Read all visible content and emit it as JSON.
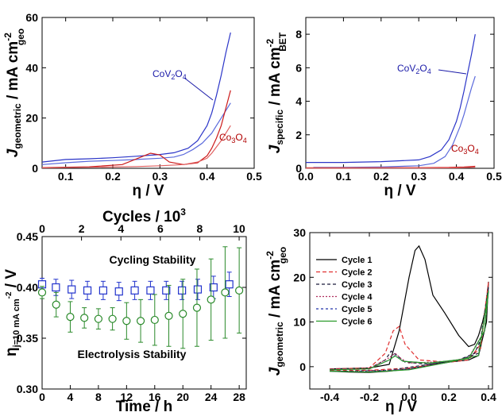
{
  "chart_data": [
    {
      "type": "line",
      "id": "A",
      "xlim": [
        0.05,
        0.5
      ],
      "ylim": [
        0,
        60
      ],
      "xticks": [
        0.1,
        0.2,
        0.3,
        0.4,
        0.5
      ],
      "xtick_labels": [
        "0.1",
        "0.2",
        "0.3",
        "0.4",
        "0.5"
      ],
      "yticks": [
        0,
        20,
        40,
        60
      ],
      "ytick_labels": [
        "0",
        "20",
        "40",
        "60"
      ],
      "xlabel": "η / V",
      "ylabel_main": "J",
      "ylabel_sub": "geometric",
      "ylabel_unit": " / mA cm",
      "ylabel_sup": "-2",
      "ylabel_sub2": "geo",
      "annotations": [
        {
          "text_main": "CoV",
          "sub1": "2",
          "mid": "O",
          "sub2": "4",
          "color": "#1a1aa8"
        },
        {
          "text_main": "Co",
          "sub1": "3",
          "mid": "O",
          "sub2": "4",
          "color": "#b00000"
        }
      ],
      "series": [
        {
          "color": "#2b35c8",
          "x": [
            0.05,
            0.1,
            0.15,
            0.2,
            0.25,
            0.3,
            0.33,
            0.36,
            0.38,
            0.4,
            0.41,
            0.42,
            0.43,
            0.44,
            0.45
          ],
          "y": [
            2.5,
            3.5,
            3.8,
            4.2,
            4.8,
            5.5,
            6.2,
            8,
            11,
            17,
            22,
            29,
            37,
            46,
            54
          ]
        },
        {
          "color": "#5b6adc",
          "x": [
            0.05,
            0.1,
            0.15,
            0.2,
            0.25,
            0.3,
            0.33,
            0.35,
            0.37,
            0.39,
            0.41,
            0.42,
            0.43,
            0.44,
            0.45
          ],
          "y": [
            1.5,
            2.2,
            2.8,
            3.1,
            3.5,
            4,
            4.5,
            5.5,
            7.5,
            10,
            14,
            17,
            20,
            23,
            26
          ]
        },
        {
          "color": "#cc1a1a",
          "x": [
            0.05,
            0.15,
            0.22,
            0.26,
            0.28,
            0.3,
            0.32,
            0.35,
            0.38,
            0.4,
            0.41,
            0.42,
            0.43,
            0.44,
            0.45
          ],
          "y": [
            0.3,
            0.6,
            1.5,
            4.5,
            6,
            5.3,
            2.5,
            1.5,
            2.2,
            5,
            8,
            12,
            17,
            24,
            31
          ]
        },
        {
          "color": "#e06060",
          "x": [
            0.05,
            0.15,
            0.25,
            0.3,
            0.35,
            0.38,
            0.4,
            0.41,
            0.42,
            0.43,
            0.44,
            0.45
          ],
          "y": [
            0.2,
            0.4,
            0.7,
            1,
            1.5,
            2.5,
            4,
            6,
            8.5,
            11,
            14,
            17
          ]
        }
      ]
    },
    {
      "type": "line",
      "id": "B",
      "xlim": [
        0,
        0.5
      ],
      "ylim": [
        0,
        9
      ],
      "xticks": [
        0,
        0.1,
        0.2,
        0.3,
        0.4,
        0.5
      ],
      "xtick_labels": [
        "0.0",
        "0.1",
        "0.2",
        "0.3",
        "0.4",
        "0.5"
      ],
      "yticks": [
        0,
        2,
        4,
        6,
        8
      ],
      "ytick_labels": [
        "0",
        "2",
        "4",
        "6",
        "8"
      ],
      "xlabel": "η / V",
      "ylabel_main": "J",
      "ylabel_sub": "specific",
      "ylabel_unit": " / mA cm",
      "ylabel_sup": "-2",
      "ylabel_sub2": "BET",
      "annotations": [
        {
          "text_main": "CoV",
          "sub1": "2",
          "mid": "O",
          "sub2": "4",
          "color": "#1a1aa8"
        },
        {
          "text_main": "Co",
          "sub1": "3",
          "mid": "O",
          "sub2": "4",
          "color": "#b00000"
        }
      ],
      "series": [
        {
          "color": "#2b35c8",
          "x": [
            0,
            0.1,
            0.2,
            0.3,
            0.33,
            0.36,
            0.38,
            0.4,
            0.41,
            0.42,
            0.43,
            0.44,
            0.45
          ],
          "y": [
            0.35,
            0.35,
            0.4,
            0.5,
            0.7,
            1.1,
            1.7,
            2.8,
            3.6,
            4.6,
            5.7,
            6.8,
            8
          ]
        },
        {
          "color": "#5b6adc",
          "x": [
            0.02,
            0.1,
            0.2,
            0.3,
            0.34,
            0.37,
            0.39,
            0.41,
            0.42,
            0.43,
            0.44,
            0.45
          ],
          "y": [
            0.05,
            0.05,
            0.08,
            0.15,
            0.3,
            0.7,
            1.4,
            2.5,
            3.2,
            4,
            4.8,
            5.5
          ]
        },
        {
          "color": "#cc1a1a",
          "x": [
            0,
            0.1,
            0.2,
            0.3,
            0.38,
            0.42,
            0.45
          ],
          "y": [
            0.03,
            0.03,
            0.04,
            0.04,
            0.05,
            0.08,
            0.12
          ]
        },
        {
          "color": "#e06060",
          "x": [
            0,
            0.1,
            0.2,
            0.3,
            0.4,
            0.45
          ],
          "y": [
            0.01,
            0.01,
            0.02,
            0.02,
            0.03,
            0.06
          ]
        }
      ]
    },
    {
      "type": "scatter",
      "id": "C",
      "xlim": [
        0,
        29
      ],
      "ylim": [
        0.3,
        0.45
      ],
      "xticks": [
        0,
        4,
        8,
        12,
        16,
        20,
        24,
        28
      ],
      "xtick_labels": [
        "0",
        "4",
        "8",
        "12",
        "16",
        "20",
        "24",
        "28"
      ],
      "x2lim": [
        0,
        10.36
      ],
      "x2ticks": [
        0,
        2,
        4,
        6,
        8,
        10
      ],
      "x2tick_labels": [
        "0",
        "2",
        "4",
        "6",
        "8",
        "10"
      ],
      "yticks": [
        0.3,
        0.35,
        0.4,
        0.45
      ],
      "ytick_labels": [
        "0.30",
        "0.35",
        "0.40",
        "0.45"
      ],
      "xlabel": "Time / h",
      "x2label": "Cycles / 10",
      "x2label_sup": "3",
      "ylabel_main": "η",
      "ylabel_sub": "j=10 mA cm",
      "ylabel_sup": "-2",
      "ylabel_unit": " / V",
      "labels": [
        "Cycling Stability",
        "Electrolysis Stability"
      ],
      "series": [
        {
          "marker": "square",
          "color": "#2233cc",
          "axis": "top",
          "x": [
            0,
            0.7,
            1.5,
            2.3,
            3.1,
            3.9,
            4.7,
            5.5,
            6.3,
            7.1,
            7.9,
            8.7,
            9.5
          ],
          "y": [
            0.403,
            0.4,
            0.398,
            0.397,
            0.397,
            0.396,
            0.397,
            0.397,
            0.397,
            0.397,
            0.398,
            0.4,
            0.403
          ],
          "err": [
            0.006,
            0.008,
            0.009,
            0.009,
            0.009,
            0.009,
            0.009,
            0.009,
            0.009,
            0.009,
            0.01,
            0.011,
            0.012
          ]
        },
        {
          "marker": "circle",
          "color": "#2a8a2a",
          "axis": "bottom",
          "x": [
            0,
            2,
            4,
            6,
            8,
            10,
            12,
            14,
            16,
            18,
            20,
            22,
            24,
            26,
            28
          ],
          "y": [
            0.395,
            0.383,
            0.371,
            0.37,
            0.369,
            0.369,
            0.367,
            0.367,
            0.368,
            0.372,
            0.374,
            0.38,
            0.388,
            0.395,
            0.397
          ],
          "err": [
            0.006,
            0.012,
            0.015,
            0.01,
            0.01,
            0.011,
            0.018,
            0.021,
            0.025,
            0.03,
            0.034,
            0.038,
            0.04,
            0.045,
            0.042
          ]
        }
      ]
    },
    {
      "type": "line",
      "id": "D",
      "xlim": [
        -0.5,
        0.42
      ],
      "ylim": [
        -5,
        30
      ],
      "xticks": [
        -0.4,
        -0.2,
        0,
        0.2,
        0.4
      ],
      "xtick_labels": [
        "-0.4",
        "-0.2",
        "0.0",
        "0.2",
        "0.4"
      ],
      "yticks": [
        0,
        10,
        20,
        30
      ],
      "ytick_labels": [
        "0",
        "10",
        "20",
        "30"
      ],
      "xlabel": "η / V",
      "ylabel_main": "J",
      "ylabel_sub": "geometric",
      "ylabel_unit": " / mA cm",
      "ylabel_sup": "-2",
      "ylabel_sub2": "geo",
      "series": [
        {
          "name": "Cycle 1",
          "color": "#000000",
          "dash": "",
          "x": [
            -0.4,
            -0.2,
            -0.1,
            -0.05,
            0,
            0.03,
            0.05,
            0.08,
            0.12,
            0.18,
            0.25,
            0.3,
            0.33,
            0.35,
            0.37,
            0.39,
            0.4,
            0.39,
            0.35,
            0.3,
            0.2,
            0.1,
            0,
            -0.1,
            -0.2,
            -0.3,
            -0.4
          ],
          "y": [
            -0.5,
            -0.3,
            0.5,
            8,
            20,
            26,
            27,
            24,
            16,
            12,
            7,
            4.5,
            5,
            7,
            10,
            14,
            19,
            10,
            2.5,
            1.5,
            1,
            0.3,
            -0.5,
            -1,
            -1.3,
            -1.2,
            -1
          ]
        },
        {
          "name": "Cycle 2",
          "color": "#e03030",
          "dash": "5,3",
          "x": [
            -0.4,
            -0.2,
            -0.12,
            -0.08,
            -0.05,
            -0.02,
            0.05,
            0.2,
            0.3,
            0.36,
            0.4,
            0.36,
            0.3,
            0.2,
            0,
            -0.2,
            -0.4
          ],
          "y": [
            -0.5,
            -0.3,
            3,
            8,
            9,
            5,
            1.5,
            1,
            1.5,
            5,
            19,
            4,
            2,
            1,
            -0.3,
            -0.8,
            -0.8
          ]
        },
        {
          "name": "Cycle 3",
          "color": "#1a1a3a",
          "dash": "4,3",
          "x": [
            -0.4,
            -0.2,
            -0.12,
            -0.09,
            -0.06,
            -0.02,
            0.1,
            0.25,
            0.33,
            0.38,
            0.4,
            0.35,
            0.25,
            0.1,
            -0.1,
            -0.3,
            -0.4
          ],
          "y": [
            -0.6,
            -0.4,
            1.5,
            3.5,
            2.5,
            1,
            0.5,
            1.5,
            3,
            8,
            18,
            3,
            1.5,
            0.5,
            -0.8,
            -1,
            -1
          ]
        },
        {
          "name": "Cycle 4",
          "color": "#b03060",
          "dash": "2,2",
          "x": [
            -0.4,
            -0.2,
            -0.1,
            -0.07,
            -0.04,
            0,
            0.2,
            0.3,
            0.38,
            0.4,
            0.35,
            0.2,
            0,
            -0.2,
            -0.4
          ],
          "y": [
            -0.6,
            -0.4,
            2,
            3,
            1.8,
            0.8,
            1.2,
            2,
            8,
            17,
            2.5,
            1,
            -0.5,
            -1,
            -1
          ]
        },
        {
          "name": "Cycle 5",
          "color": "#2233aa",
          "dash": "3,3",
          "x": [
            -0.4,
            -0.2,
            -0.1,
            -0.07,
            -0.03,
            0.1,
            0.3,
            0.38,
            0.4,
            0.35,
            0.2,
            0,
            -0.2,
            -0.4
          ],
          "y": [
            -0.7,
            -0.5,
            1.5,
            2.5,
            1.2,
            0.8,
            1.8,
            8,
            17,
            2.5,
            1,
            -0.6,
            -1.1,
            -1
          ]
        },
        {
          "name": "Cycle 6",
          "color": "#2a9a2a",
          "dash": "",
          "x": [
            -0.4,
            -0.2,
            -0.1,
            -0.07,
            -0.03,
            0.1,
            0.3,
            0.38,
            0.4,
            0.35,
            0.2,
            0,
            -0.2,
            -0.4
          ],
          "y": [
            -0.7,
            -0.5,
            1.5,
            2.4,
            1.2,
            0.8,
            1.8,
            8,
            17,
            2.5,
            1,
            -0.7,
            -1.2,
            -1
          ]
        }
      ]
    }
  ]
}
